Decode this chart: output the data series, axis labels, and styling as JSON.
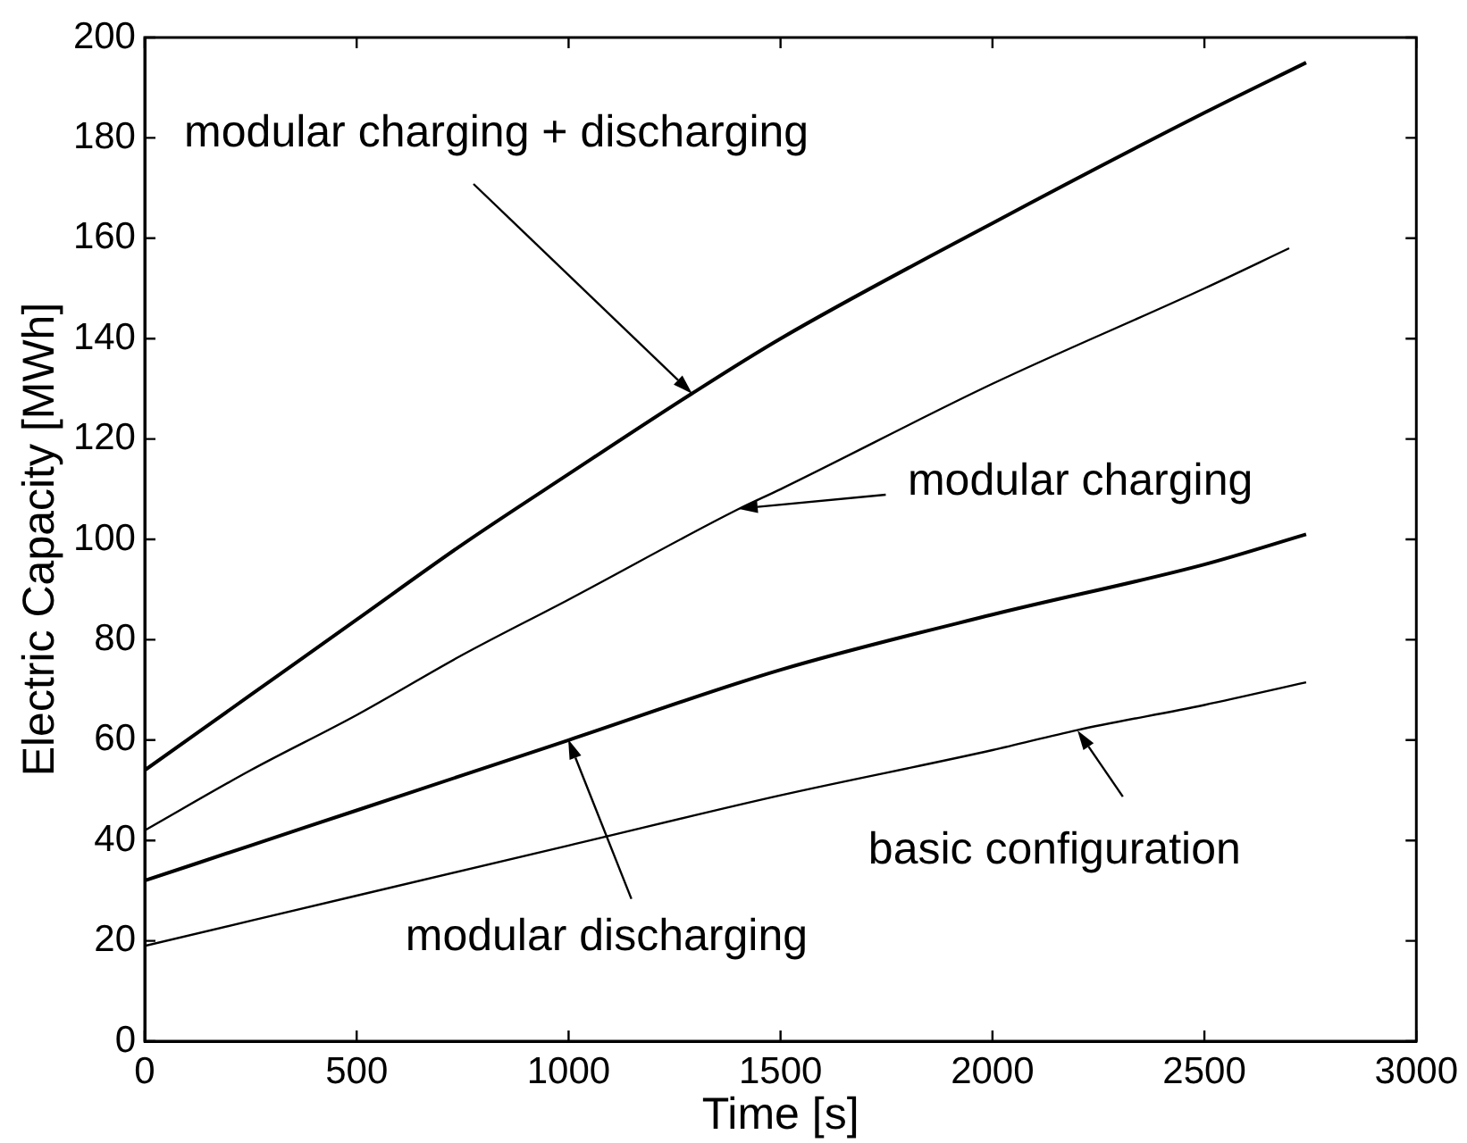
{
  "chart_data": {
    "type": "line",
    "xlabel": "Time [s]",
    "ylabel": "Electric Capacity [MWh]",
    "xlim": [
      0,
      3000
    ],
    "xticks": [
      0,
      500,
      1000,
      1500,
      2000,
      2500,
      3000
    ],
    "ylim": [
      0,
      200
    ],
    "yticks": [
      0,
      20,
      40,
      60,
      80,
      100,
      120,
      140,
      160,
      180,
      200
    ],
    "series": [
      {
        "color": "#000000",
        "x": [
          0,
          250,
          500,
          750,
          1000,
          1290,
          1500,
          2000,
          2500,
          2740
        ],
        "values": [
          54,
          69,
          84,
          99,
          113,
          129,
          140,
          163,
          185,
          195
        ]
      },
      {
        "color": "#000000",
        "x": [
          0,
          250,
          500,
          750,
          1000,
          1400,
          1500,
          2000,
          2500,
          2700
        ],
        "values": [
          42,
          54,
          65,
          77,
          88,
          106,
          110,
          131,
          150,
          158
        ]
      },
      {
        "color": "#000000",
        "x": [
          0,
          250,
          500,
          750,
          1000,
          1500,
          2000,
          2500,
          2740
        ],
        "values": [
          32,
          39,
          46,
          53,
          60,
          74,
          85,
          95,
          101
        ]
      },
      {
        "color": "#000000",
        "x": [
          0,
          500,
          1000,
          1500,
          2000,
          2200,
          2500,
          2740
        ],
        "values": [
          19,
          29,
          39,
          49,
          58,
          62,
          67,
          71.5
        ]
      }
    ],
    "annotations": [
      "modular charging + discharging",
      "modular charging",
      "modular discharging",
      "basic configuration"
    ]
  }
}
